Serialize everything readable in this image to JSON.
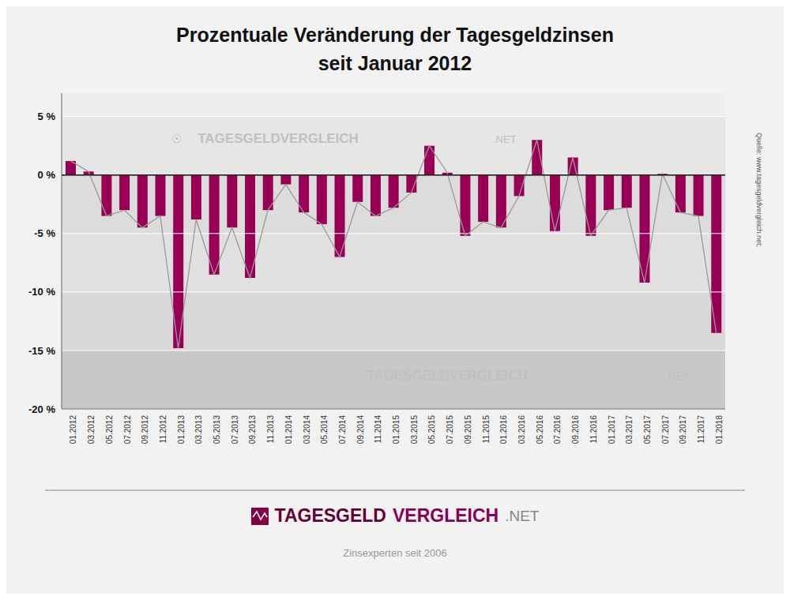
{
  "chart_data": {
    "type": "bar",
    "title": "Prozentuale Veränderung der Tagesgeldzinsen",
    "subtitle": "seit Januar 2012",
    "categories": [
      "01.2012",
      "03.2012",
      "05.2012",
      "07.2012",
      "09.2012",
      "11.2012",
      "01.2013",
      "03.2013",
      "05.2013",
      "07.2013",
      "09.2013",
      "11.2013",
      "01.2014",
      "03.2014",
      "05.2014",
      "07.2014",
      "09.2014",
      "11.2014",
      "01.2015",
      "03.2015",
      "05.2015",
      "07.2015",
      "09.2015",
      "11.2015",
      "01.2016",
      "03.2016",
      "05.2016",
      "07.2016",
      "09.2016",
      "11.2016",
      "01.2017",
      "03.2017",
      "05.2017",
      "07.2017",
      "09.2017",
      "11.2017",
      "01.2018"
    ],
    "series": [
      {
        "type": "bar",
        "color": "#990055",
        "values": [
          1.2,
          0.3,
          -3.5,
          -3.0,
          -4.5,
          -3.5,
          -14.8,
          -3.8,
          -8.5,
          -4.5,
          -8.8,
          -3.0,
          -0.8,
          -3.2,
          -4.2,
          -7.0,
          -2.3,
          -3.5,
          -2.8,
          -1.5,
          2.5,
          0.2,
          -5.2,
          -4.0,
          -4.5,
          -1.8,
          3.0,
          -4.8,
          1.5,
          -5.2,
          -3.0,
          -2.8,
          -9.2,
          0.1,
          -3.2,
          -3.5,
          -13.5
        ]
      },
      {
        "type": "line",
        "color": "#999999",
        "values": [
          1.2,
          0.3,
          -3.5,
          -3.0,
          -4.5,
          -3.5,
          -14.8,
          -3.8,
          -8.5,
          -4.5,
          -8.8,
          -3.0,
          -0.8,
          -3.2,
          -4.2,
          -7.0,
          -2.3,
          -3.5,
          -2.8,
          -1.5,
          2.5,
          0.2,
          -5.2,
          -4.0,
          -4.5,
          -1.8,
          3.0,
          -4.8,
          1.5,
          -5.2,
          -3.0,
          -2.8,
          -9.2,
          0.1,
          -3.2,
          -3.5,
          -13.5
        ]
      }
    ],
    "ylim": [
      -20,
      7
    ],
    "yticks": [
      {
        "value": 5,
        "label": "5 %"
      },
      {
        "value": 0,
        "label": "0 %"
      },
      {
        "value": -5,
        "label": "-5 %"
      },
      {
        "value": -10,
        "label": "-10 %"
      },
      {
        "value": -15,
        "label": "-15 %"
      },
      {
        "value": -20,
        "label": "-20 %"
      }
    ],
    "grid": true,
    "annotations": [
      "☉",
      "TAGESGELDVERGLEICH",
      ".NET",
      "TAGESGELDVERGLEICH",
      ".NET",
      "Quelle: www.tagesgeldvergleich.net;",
      "TAGESGELD",
      "VERGLEICH",
      ".NET",
      "Zinsexperten seit 2006"
    ]
  }
}
